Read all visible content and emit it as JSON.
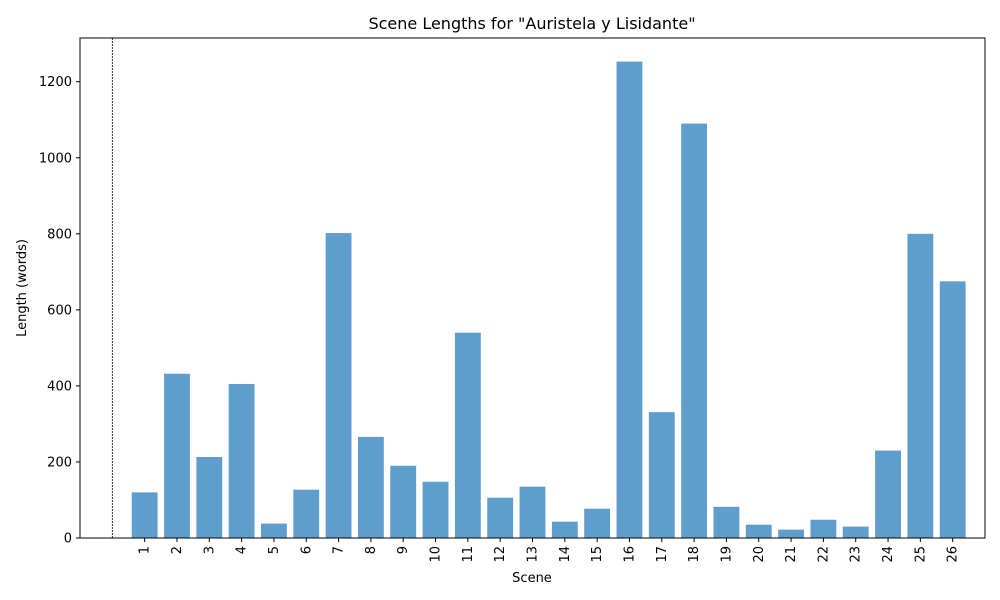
{
  "chart_data": {
    "type": "bar",
    "title": "Scene Lengths for \"Auristela y Lisidante\"",
    "xlabel": "Scene",
    "ylabel": "Length (words)",
    "categories": [
      "1",
      "2",
      "3",
      "4",
      "5",
      "6",
      "7",
      "8",
      "9",
      "10",
      "11",
      "12",
      "13",
      "14",
      "15",
      "16",
      "17",
      "18",
      "19",
      "20",
      "21",
      "22",
      "23",
      "24",
      "25",
      "26"
    ],
    "values": [
      120,
      432,
      213,
      405,
      38,
      127,
      802,
      266,
      190,
      148,
      540,
      106,
      135,
      43,
      77,
      1253,
      331,
      1090,
      82,
      35,
      22,
      48,
      30,
      230,
      800,
      675
    ],
    "ylim": [
      0,
      1315
    ],
    "yticks": [
      0,
      200,
      400,
      600,
      800,
      1000,
      1200
    ],
    "bar_color": "#5f9ecc",
    "reference_line": {
      "x": 0,
      "style": "dotted",
      "color": "#000000"
    },
    "grid": false,
    "legend": "none"
  }
}
